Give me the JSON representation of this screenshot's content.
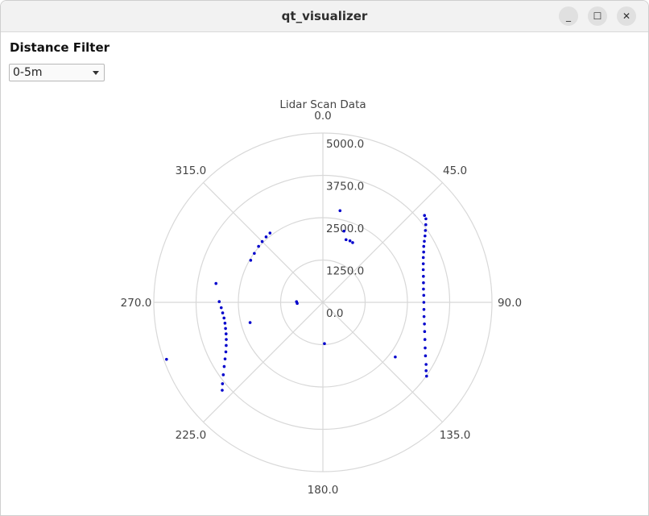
{
  "window": {
    "title": "qt_visualizer"
  },
  "window_controls": {
    "minimize": "_",
    "maximize": "☐",
    "close": "✕"
  },
  "filter": {
    "label": "Distance Filter",
    "selected": "0-5m"
  },
  "chart_data": {
    "type": "scatter",
    "title": "Lidar Scan Data",
    "coordinate_system": "polar",
    "angle_ticks": [
      "0.0",
      "45.0",
      "90.0",
      "135.0",
      "180.0",
      "225.0",
      "270.0",
      "315.0"
    ],
    "radial_ticks": [
      "0.0",
      "1250.0",
      "2500.0",
      "3750.0",
      "5000.0"
    ],
    "radial_range": [
      0,
      5000
    ],
    "grid": true,
    "color": "#0000cc",
    "points": [
      {
        "angle": 10.6,
        "r": 2754
      },
      {
        "angle": 16.5,
        "r": 2194
      },
      {
        "angle": 20.3,
        "r": 1974
      },
      {
        "angle": 23.8,
        "r": 1985
      },
      {
        "angle": 26.5,
        "r": 1972
      },
      {
        "angle": 49.5,
        "r": 3952
      },
      {
        "angle": 51.0,
        "r": 3920
      },
      {
        "angle": 53.0,
        "r": 3810
      },
      {
        "angle": 55.0,
        "r": 3700
      },
      {
        "angle": 57.0,
        "r": 3600
      },
      {
        "angle": 59.0,
        "r": 3500
      },
      {
        "angle": 61.0,
        "r": 3410
      },
      {
        "angle": 63.5,
        "r": 3330
      },
      {
        "angle": 66.0,
        "r": 3250
      },
      {
        "angle": 69.0,
        "r": 3180
      },
      {
        "angle": 72.0,
        "r": 3120
      },
      {
        "angle": 75.5,
        "r": 3070
      },
      {
        "angle": 79.0,
        "r": 3030
      },
      {
        "angle": 82.5,
        "r": 3000
      },
      {
        "angle": 86.0,
        "r": 2990
      },
      {
        "angle": 90.0,
        "r": 2985
      },
      {
        "angle": 94.0,
        "r": 2995
      },
      {
        "angle": 98.0,
        "r": 3020
      },
      {
        "angle": 102.0,
        "r": 3070
      },
      {
        "angle": 106.0,
        "r": 3130
      },
      {
        "angle": 110.0,
        "r": 3210
      },
      {
        "angle": 114.0,
        "r": 3310
      },
      {
        "angle": 117.5,
        "r": 3420
      },
      {
        "angle": 121.0,
        "r": 3560
      },
      {
        "angle": 123.5,
        "r": 3660
      },
      {
        "angle": 125.4,
        "r": 3762
      },
      {
        "angle": 127.0,
        "r": 2680
      },
      {
        "angle": 177.8,
        "r": 1220
      },
      {
        "angle": 228.9,
        "r": 3950
      },
      {
        "angle": 231.0,
        "r": 3820
      },
      {
        "angle": 234.0,
        "r": 3640
      },
      {
        "angle": 237.0,
        "r": 3480
      },
      {
        "angle": 240.0,
        "r": 3340
      },
      {
        "angle": 243.0,
        "r": 3220
      },
      {
        "angle": 246.0,
        "r": 3130
      },
      {
        "angle": 249.0,
        "r": 3060
      },
      {
        "angle": 252.0,
        "r": 3010
      },
      {
        "angle": 255.0,
        "r": 2980
      },
      {
        "angle": 258.0,
        "r": 2960
      },
      {
        "angle": 261.0,
        "r": 2960
      },
      {
        "angle": 264.0,
        "r": 2980
      },
      {
        "angle": 267.0,
        "r": 3010
      },
      {
        "angle": 270.4,
        "r": 3065
      },
      {
        "angle": 250.0,
        "r": 4920
      },
      {
        "angle": 280.0,
        "r": 3210
      },
      {
        "angle": 254.5,
        "r": 2234
      },
      {
        "angle": 267.6,
        "r": 760
      },
      {
        "angle": 271.5,
        "r": 780
      },
      {
        "angle": 300.2,
        "r": 2470
      },
      {
        "angle": 305.5,
        "r": 2490
      },
      {
        "angle": 311.0,
        "r": 2520
      },
      {
        "angle": 315.0,
        "r": 2540
      },
      {
        "angle": 319.0,
        "r": 2560
      },
      {
        "angle": 322.6,
        "r": 2576
      }
    ]
  }
}
